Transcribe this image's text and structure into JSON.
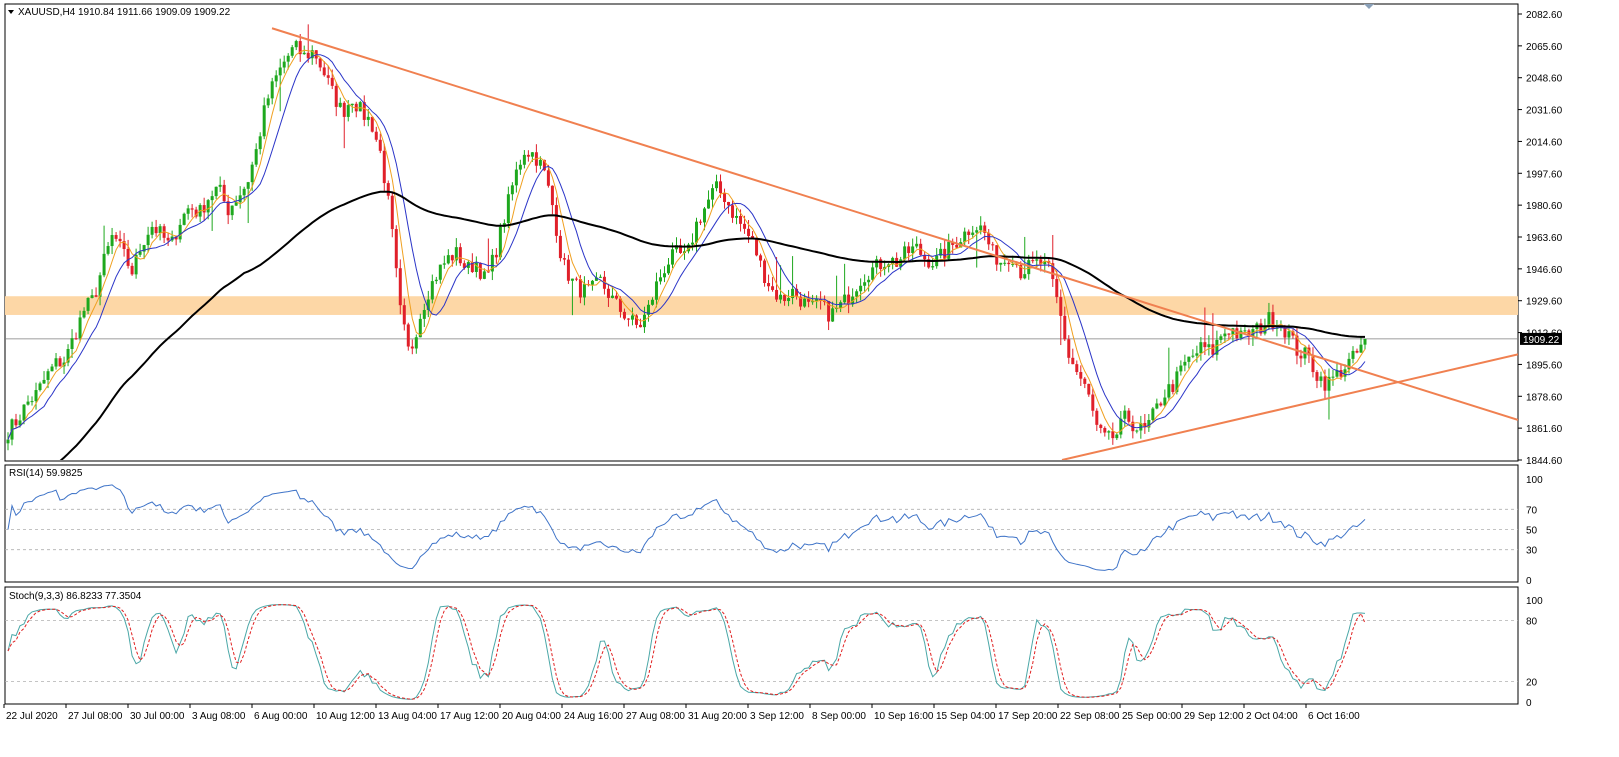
{
  "header": {
    "symbol_label": "XAUUSD,H4",
    "ohlc": "1910.84 1911.66 1909.09 1909.22",
    "current_price": "1909.22"
  },
  "colors": {
    "bull": "#1ea81e",
    "bear": "#e0202a",
    "ma_fast": "#f0a020",
    "ma_mid": "#2b35c8",
    "ma_slow": "#000000",
    "trendline": "#f08050",
    "zone": "#fdd7a6",
    "rsi": "#3f74c8",
    "stoch_main": "#4aa7a7",
    "stoch_signal": "#e02020"
  },
  "chart_data": [
    {
      "type": "candlestick",
      "name": "price",
      "ylim": [
        1844.6,
        2082.6
      ],
      "y_ticks": [
        "2082.60",
        "2065.60",
        "2048.60",
        "2031.60",
        "2014.60",
        "1997.60",
        "1980.60",
        "1963.60",
        "1946.60",
        "1929.60",
        "1912.60",
        "1895.60",
        "1878.60",
        "1861.60",
        "1844.60"
      ],
      "x_labels": [
        "22 Jul 2020",
        "27 Jul 08:00",
        "30 Jul 00:00",
        "3 Aug 08:00",
        "6 Aug 00:00",
        "10 Aug 12:00",
        "13 Aug 04:00",
        "17 Aug 12:00",
        "20 Aug 04:00",
        "24 Aug 16:00",
        "27 Aug 08:00",
        "31 Aug 20:00",
        "3 Sep 12:00",
        "8 Sep 00:00",
        "10 Sep 16:00",
        "15 Sep 04:00",
        "17 Sep 20:00",
        "22 Sep 08:00",
        "25 Sep 00:00",
        "29 Sep 12:00",
        "2 Oct 04:00",
        "6 Oct 16:00"
      ],
      "support_zone": [
        1922,
        1932
      ],
      "current_price": 1909.22,
      "close_path": [
        1860,
        1866,
        1875,
        1880,
        1889,
        1896,
        1898,
        1912,
        1925,
        1931,
        1950,
        1965,
        1955,
        1945,
        1960,
        1970,
        1965,
        1958,
        1972,
        1980,
        1976,
        1985,
        1990,
        1978,
        1985,
        1992,
        2010,
        2035,
        2048,
        2058,
        2065,
        2060,
        2063,
        2052,
        2040,
        2030,
        2038,
        2030,
        2025,
        2008,
        1975,
        1925,
        1900,
        1920,
        1935,
        1945,
        1952,
        1955,
        1946,
        1950,
        1940,
        1955,
        1975,
        1995,
        2010,
        2008,
        2000,
        1980,
        1950,
        1940,
        1935,
        1935,
        1940,
        1932,
        1925,
        1920,
        1915,
        1925,
        1940,
        1950,
        1955,
        1952,
        1970,
        1980,
        1990,
        1985,
        1975,
        1968,
        1960,
        1945,
        1935,
        1930,
        1935,
        1930,
        1925,
        1928,
        1922,
        1926,
        1932,
        1940,
        1945,
        1948,
        1952,
        1950,
        1955,
        1958,
        1952,
        1950,
        1955,
        1960,
        1965,
        1970,
        1968,
        1955,
        1950,
        1955,
        1945,
        1948,
        1950,
        1945,
        1925,
        1900,
        1890,
        1880,
        1860,
        1855,
        1858,
        1868,
        1862,
        1860,
        1870,
        1880,
        1885,
        1895,
        1900,
        1905,
        1902,
        1912,
        1915,
        1910,
        1912,
        1915,
        1920,
        1918,
        1912,
        1902,
        1900,
        1890,
        1885,
        1890,
        1895,
        1900,
        1909.22
      ],
      "triangle_upper": [
        [
          2075,
          1911
        ]
      ],
      "triangle_lower": [
        [
          1844.6,
          1880
        ]
      ]
    },
    {
      "type": "line",
      "name": "rsi",
      "title": "RSI(14) 59.9825",
      "ylim": [
        0,
        100
      ],
      "y_ticks": [
        "100",
        "70",
        "50",
        "30",
        "0"
      ],
      "levels": [
        70,
        50,
        30
      ]
    },
    {
      "type": "line",
      "name": "stochastic",
      "title": "Stoch(9,3,3) 86.8233 77.3504",
      "ylim": [
        0,
        100
      ],
      "y_ticks": [
        "100",
        "80",
        "20",
        "0"
      ],
      "levels": [
        80,
        20
      ]
    }
  ]
}
